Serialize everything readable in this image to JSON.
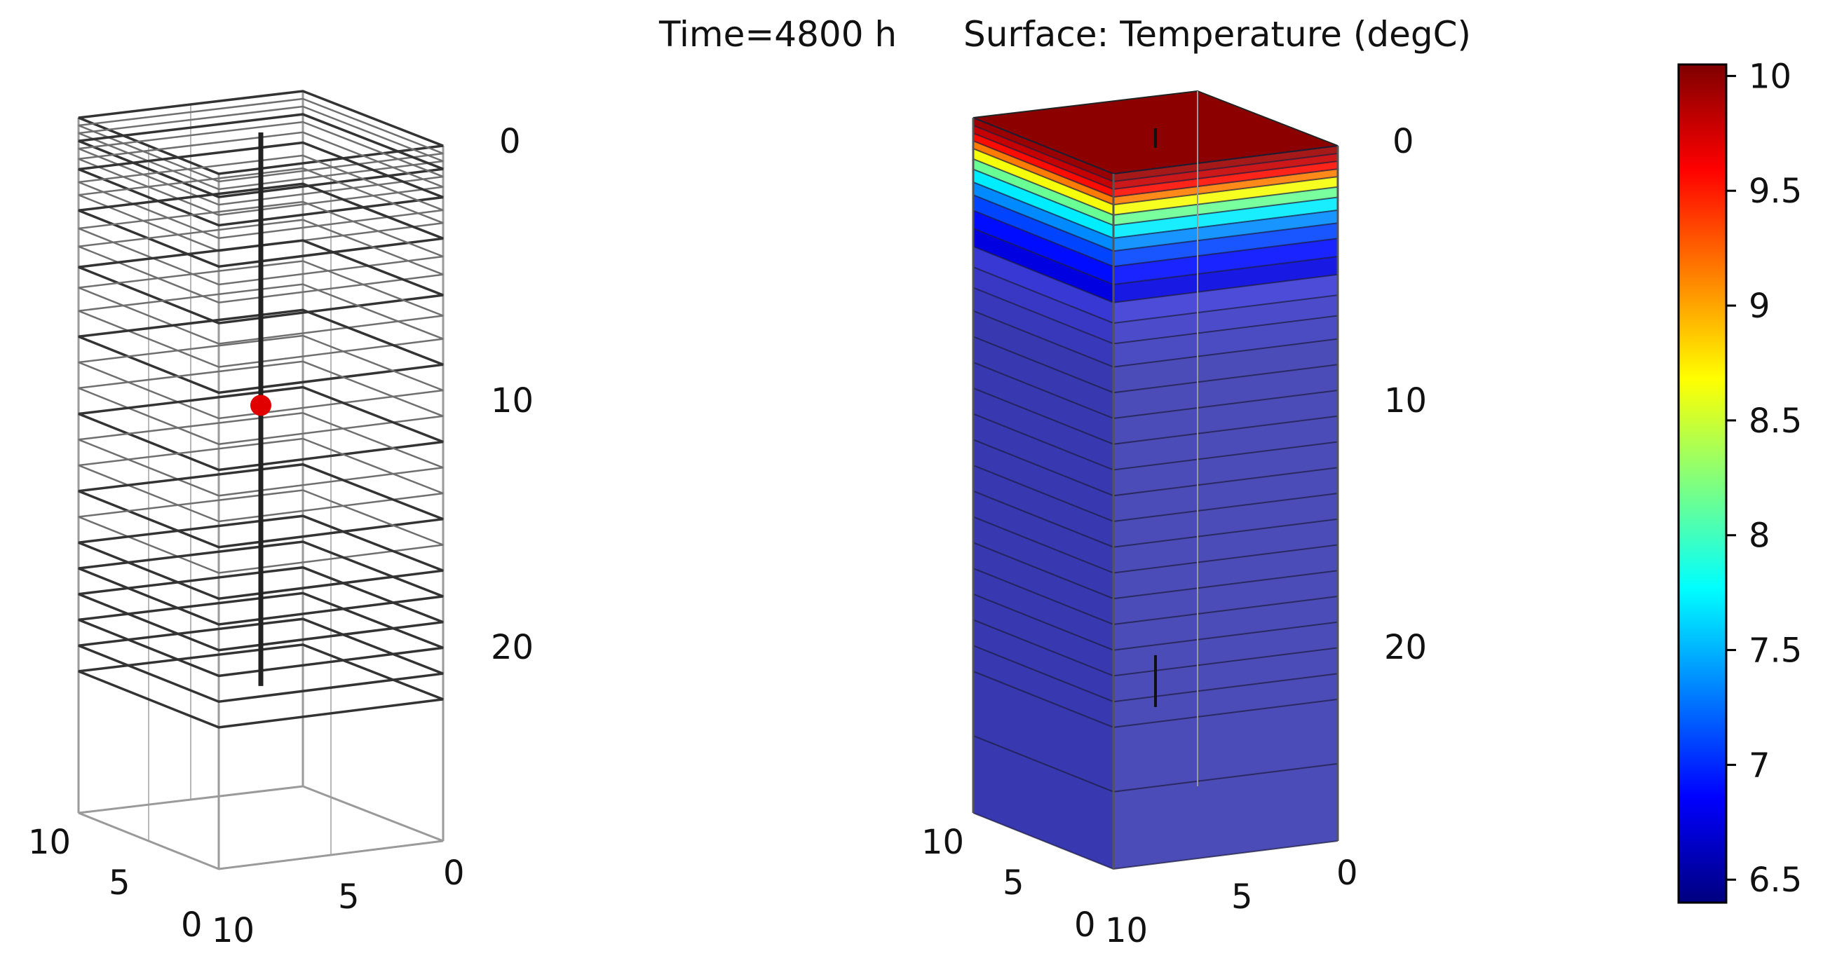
{
  "title": {
    "time_label": "Time=4800 h",
    "surface_label": "Surface: Temperature (degC)"
  },
  "chart_data": [
    {
      "type": "3d-wireframe",
      "panel": "left",
      "depth_ticks": [
        "0",
        "10",
        "20"
      ],
      "x_ticks": [
        "10",
        "5",
        "0"
      ],
      "y_ticks": [
        "10",
        "5",
        "0"
      ],
      "layer_depths_m": [
        0,
        0.3,
        0.6,
        0.9,
        1.2,
        1.6,
        2.0,
        2.5,
        3.0,
        3.6,
        4.3,
        5.0,
        5.8,
        6.6,
        7.5,
        8.5,
        9.5,
        10.5,
        11.5,
        12.5,
        13.5,
        14.5,
        15.5,
        16.5,
        17.5,
        18.5,
        19.5,
        20.5,
        21.5
      ],
      "probe_marker": {
        "depth_m": 10,
        "color": "#e00000"
      },
      "borehole_bottom_m": 21.5
    },
    {
      "type": "3d-surface",
      "panel": "right",
      "depth_ticks": [
        "0",
        "10",
        "20"
      ],
      "x_ticks": [
        "10",
        "5",
        "0"
      ],
      "y_ticks": [
        "10",
        "5",
        "0"
      ],
      "time_h": 4800,
      "quantity": "Temperature",
      "unit": "degC",
      "temperature_profile": [
        {
          "depth_m": 0.0,
          "value": 10.0
        },
        {
          "depth_m": 0.3,
          "value": 9.9
        },
        {
          "depth_m": 0.6,
          "value": 9.7
        },
        {
          "depth_m": 0.9,
          "value": 9.4
        },
        {
          "depth_m": 1.2,
          "value": 8.9
        },
        {
          "depth_m": 1.6,
          "value": 8.4
        },
        {
          "depth_m": 2.0,
          "value": 7.9
        },
        {
          "depth_m": 2.5,
          "value": 7.5
        },
        {
          "depth_m": 3.0,
          "value": 7.2
        },
        {
          "depth_m": 3.6,
          "value": 7.0
        },
        {
          "depth_m": 4.3,
          "value": 6.8
        },
        {
          "depth_m": 5.0,
          "value": 6.7
        },
        {
          "depth_m": 6.0,
          "value": 6.6
        },
        {
          "depth_m": 8.0,
          "value": 6.5
        },
        {
          "depth_m": 21.5,
          "value": 6.5
        },
        {
          "depth_m": 27.0,
          "value": 6.5
        }
      ]
    }
  ],
  "colorbar": {
    "min": 6.4,
    "max": 10.05,
    "ticks": [
      "10",
      "9.5",
      "9",
      "8.5",
      "8",
      "7.5",
      "7",
      "6.5"
    ],
    "tick_values": [
      10,
      9.5,
      9,
      8.5,
      8,
      7.5,
      7,
      6.5
    ],
    "colormap": [
      "#00007f",
      "#0000ff",
      "#007fff",
      "#00ffff",
      "#7fff7f",
      "#ffff00",
      "#ff7f00",
      "#ff0000",
      "#7f0000"
    ]
  }
}
